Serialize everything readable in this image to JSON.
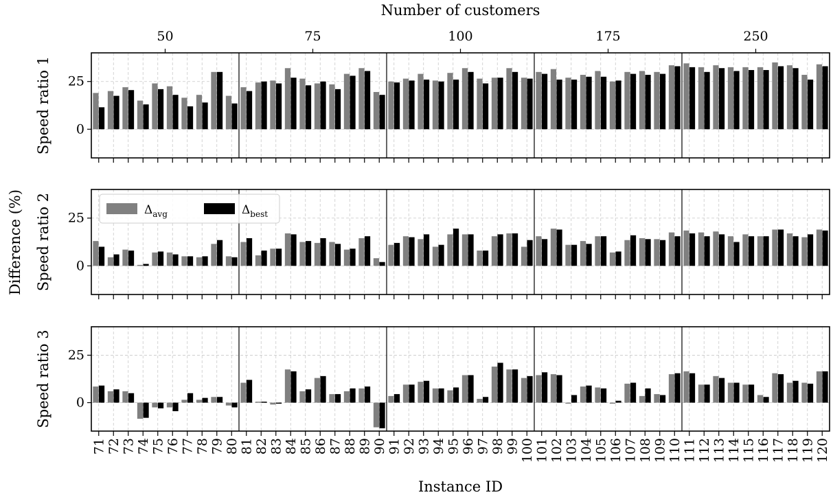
{
  "chart_data": {
    "type": "bar",
    "top_axis_label": "Number of customers",
    "xlabel": "Instance ID",
    "ylabel": "Difference (%)",
    "ylim": [
      -15,
      40
    ],
    "yticks": [
      0,
      25
    ],
    "grid": true,
    "legend_placement": "top-left of second panel",
    "colors": {
      "avg": "#808080",
      "best": "#000000"
    },
    "series_names": {
      "avg_base": "Δ",
      "avg_sub": "avg",
      "best_base": "Δ",
      "best_sub": "best"
    },
    "groups": [
      {
        "label": "50",
        "start_index": 0,
        "end_index": 9
      },
      {
        "label": "75",
        "start_index": 10,
        "end_index": 19
      },
      {
        "label": "100",
        "start_index": 20,
        "end_index": 29
      },
      {
        "label": "175",
        "start_index": 30,
        "end_index": 39
      },
      {
        "label": "250",
        "start_index": 40,
        "end_index": 49
      }
    ],
    "categories": [
      "71",
      "72",
      "73",
      "74",
      "75",
      "76",
      "77",
      "78",
      "79",
      "80",
      "81",
      "82",
      "83",
      "84",
      "85",
      "86",
      "87",
      "88",
      "89",
      "90",
      "91",
      "92",
      "93",
      "94",
      "95",
      "96",
      "97",
      "98",
      "99",
      "100",
      "101",
      "102",
      "103",
      "104",
      "105",
      "106",
      "107",
      "108",
      "109",
      "110",
      "111",
      "112",
      "113",
      "114",
      "115",
      "116",
      "117",
      "118",
      "119",
      "120"
    ],
    "panels": [
      {
        "label": "Speed ratio 1",
        "avg": [
          19,
          20,
          22,
          15,
          24,
          22.5,
          16.5,
          18,
          30,
          17.5,
          22,
          24.5,
          25.5,
          32,
          26.5,
          24,
          23.5,
          29,
          32,
          19.5,
          25,
          26.5,
          29,
          25.5,
          29.5,
          32,
          26.5,
          27,
          32,
          27,
          30,
          31.5,
          27,
          28.5,
          30.5,
          25,
          30,
          30.5,
          30,
          33.5,
          34.5,
          32.5,
          33.5,
          32.5,
          32.5,
          32.5,
          35,
          33.5,
          28.5,
          34
        ],
        "best": [
          11.5,
          17.5,
          20.5,
          13,
          21,
          18,
          12,
          14,
          30,
          13.5,
          20,
          25,
          24,
          27,
          23,
          25,
          21,
          28,
          30.5,
          18,
          24.5,
          25.5,
          26,
          25,
          26,
          30,
          24,
          27,
          30,
          26.5,
          29,
          26,
          26,
          27.5,
          27.5,
          25.5,
          29,
          28.5,
          29,
          33,
          32.5,
          30,
          32,
          30.5,
          31,
          31,
          33,
          32,
          26,
          33
        ]
      },
      {
        "label": "Speed ratio 2",
        "avg": [
          13,
          4.5,
          8.5,
          0.5,
          7,
          7,
          5,
          4.5,
          11.5,
          5,
          12.5,
          5.5,
          9,
          17,
          12.5,
          12,
          12.5,
          8.5,
          14.5,
          4,
          11,
          15.5,
          14,
          10,
          16.5,
          16.5,
          8,
          15.5,
          17,
          10,
          15.5,
          19.5,
          11,
          13,
          15.5,
          7,
          13.5,
          14.5,
          14,
          17.5,
          18.5,
          17.5,
          18,
          15.5,
          16.5,
          15.5,
          19,
          17,
          15,
          19
        ],
        "best": [
          10,
          6,
          8,
          1,
          7.5,
          6,
          5,
          5,
          13.5,
          4.5,
          14.5,
          8,
          9,
          16.5,
          13,
          14.5,
          11.5,
          9,
          15.5,
          2,
          12,
          15,
          16.5,
          11,
          19.5,
          16.5,
          8,
          16.5,
          17,
          13.5,
          14,
          19,
          11,
          11.5,
          15.5,
          7.5,
          16,
          14,
          13.5,
          15.5,
          17,
          15.5,
          16.5,
          12.5,
          15.5,
          15.5,
          19,
          15.5,
          16.5,
          18.5
        ]
      },
      {
        "label": "Speed ratio 3",
        "avg": [
          8.5,
          6,
          6,
          -8.5,
          -2.5,
          -2.5,
          1.5,
          1.5,
          3,
          -1.5,
          10.5,
          0.5,
          -1,
          17.5,
          6,
          13,
          4.5,
          6,
          7.5,
          -13,
          3.5,
          9.5,
          11,
          7.5,
          6.5,
          14.5,
          2,
          19,
          17.5,
          13,
          14.5,
          15,
          0,
          8.5,
          8,
          0,
          10,
          3.5,
          4.5,
          15,
          16.5,
          9.5,
          14,
          10.5,
          9.5,
          4,
          15.5,
          10.5,
          10.5,
          16.5
        ],
        "best": [
          9,
          7,
          5,
          -8,
          -3,
          -4.5,
          5,
          2.5,
          3,
          -2.5,
          12,
          0.5,
          -0.5,
          16.5,
          7,
          14,
          4.5,
          7.5,
          8.5,
          -13.5,
          4.5,
          9.5,
          11.5,
          7.5,
          8,
          14.5,
          3,
          21,
          17.5,
          14,
          16,
          14.5,
          4,
          9,
          7.5,
          1,
          10.5,
          7.5,
          4,
          15.5,
          15.5,
          9.5,
          13,
          10.5,
          9.5,
          3,
          15,
          11.5,
          10,
          16.5
        ]
      }
    ]
  }
}
